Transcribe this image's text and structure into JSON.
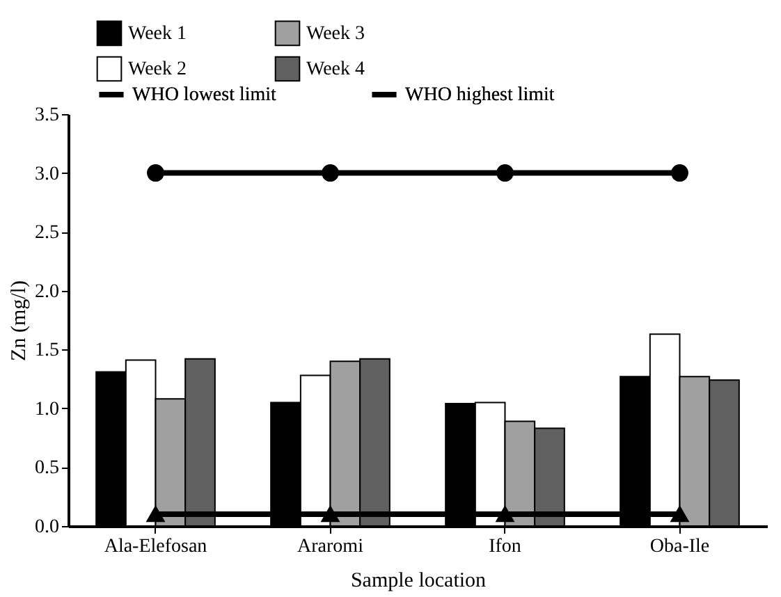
{
  "chart_data": {
    "type": "bar",
    "xlabel": "Sample location",
    "ylabel": "Zn (mg/l)",
    "categories": [
      "Ala-Elefosan",
      "Araromi",
      "Ifon",
      "Oba-Ile"
    ],
    "series": [
      {
        "name": "Week 1",
        "color": "#000000",
        "values": [
          1.31,
          1.05,
          1.04,
          1.27
        ]
      },
      {
        "name": "Week 2",
        "color": "#ffffff",
        "values": [
          1.41,
          1.28,
          1.05,
          1.63
        ]
      },
      {
        "name": "Week 3",
        "color": "#a0a0a0",
        "values": [
          1.08,
          1.4,
          0.89,
          1.27
        ]
      },
      {
        "name": "Week 4",
        "color": "#606060",
        "values": [
          1.42,
          1.42,
          0.83,
          1.24
        ]
      },
      {
        "name": "WHO lowest limit",
        "type": "line",
        "marker": "triangle",
        "color": "#000000",
        "values": [
          0.1,
          0.1,
          0.1,
          0.1
        ]
      },
      {
        "name": "WHO highest limit",
        "type": "line",
        "marker": "circle",
        "color": "#000000",
        "values": [
          3.0,
          3.0,
          3.0,
          3.0
        ]
      }
    ],
    "ylim": [
      0,
      3.5
    ],
    "yticks": [
      {
        "value": 0,
        "label": "0.0"
      },
      0.5,
      {
        "value": 1,
        "label": "1.0"
      },
      1.5,
      {
        "value": 2,
        "label": "2.0"
      },
      2.5,
      {
        "value": 3,
        "label": "3.0"
      },
      3.5
    ],
    "grid": false,
    "legend": "top"
  }
}
